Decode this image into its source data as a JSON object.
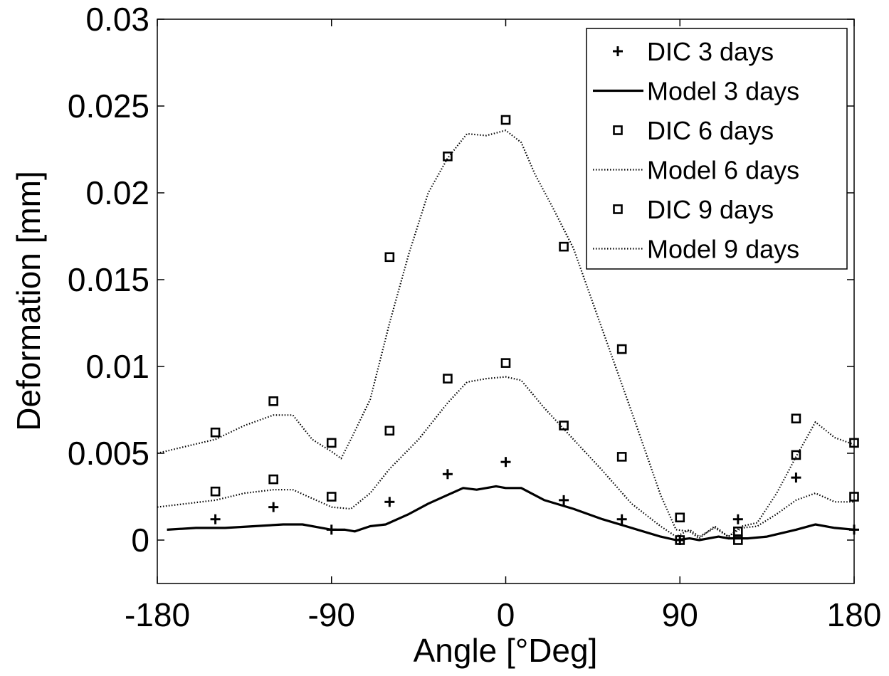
{
  "chart_data": {
    "type": "line",
    "title": "",
    "xlabel": "Angle [°Deg]",
    "ylabel": "Deformation [mm]",
    "xlim": [
      -180,
      180
    ],
    "ylim": [
      -0.0025,
      0.03
    ],
    "xticks": [
      -180,
      -90,
      0,
      90,
      180
    ],
    "xtick_labels": [
      "-180",
      "-90",
      "0",
      "90",
      "180"
    ],
    "yticks": [
      0,
      0.005,
      0.01,
      0.015,
      0.02,
      0.025,
      0.03
    ],
    "ytick_labels": [
      "0",
      "0.005",
      "0.01",
      "0.015",
      "0.02",
      "0.025",
      "0.03"
    ],
    "grid": false,
    "legend_position": "top-right",
    "series": [
      {
        "name": "DIC 3 days",
        "kind": "scatter",
        "marker": "plus",
        "x": [
          -150,
          -120,
          -90,
          -60,
          -30,
          0,
          30,
          60,
          90,
          120,
          150,
          180
        ],
        "y": [
          0.0012,
          0.0019,
          0.0006,
          0.0022,
          0.0038,
          0.0045,
          0.0023,
          0.0012,
          0.0,
          0.0012,
          0.0036,
          0.0006
        ]
      },
      {
        "name": "Model 3 days",
        "kind": "line",
        "style": "solid",
        "x": [
          -175,
          -160,
          -145,
          -130,
          -115,
          -105,
          -95,
          -90,
          -83,
          -78,
          -70,
          -62,
          -50,
          -40,
          -30,
          -22,
          -15,
          -5,
          0,
          8,
          20,
          35,
          50,
          65,
          80,
          88,
          95,
          100,
          110,
          115,
          125,
          135,
          150,
          160,
          170,
          180
        ],
        "y": [
          0.0006,
          0.0007,
          0.0007,
          0.0008,
          0.0009,
          0.0009,
          0.0007,
          0.0006,
          0.0006,
          0.0005,
          0.0008,
          0.0009,
          0.0015,
          0.0021,
          0.0026,
          0.003,
          0.0029,
          0.0031,
          0.003,
          0.003,
          0.0023,
          0.0018,
          0.0012,
          0.0007,
          0.0002,
          0.0,
          0.0001,
          0.0,
          0.0002,
          0.0001,
          0.0001,
          0.0002,
          0.0006,
          0.0009,
          0.0007,
          0.0006
        ]
      },
      {
        "name": "DIC 6 days",
        "kind": "scatter",
        "marker": "square",
        "x": [
          -150,
          -120,
          -90,
          -60,
          -30,
          0,
          30,
          60,
          90,
          120,
          150,
          180
        ],
        "y": [
          0.0028,
          0.0035,
          0.0025,
          0.0063,
          0.0093,
          0.0102,
          0.0066,
          0.0048,
          0.0013,
          0.0005,
          0.0049,
          0.0025
        ]
      },
      {
        "name": "Model 6 days",
        "kind": "line",
        "style": "dotted",
        "x": [
          -180,
          -165,
          -150,
          -135,
          -120,
          -110,
          -100,
          -90,
          -80,
          -70,
          -60,
          -45,
          -30,
          -20,
          -10,
          0,
          8,
          20,
          35,
          50,
          65,
          80,
          88,
          95,
          100,
          108,
          115,
          122,
          130,
          140,
          150,
          160,
          170,
          180
        ],
        "y": [
          0.0019,
          0.0021,
          0.0023,
          0.0027,
          0.0029,
          0.0029,
          0.0024,
          0.0019,
          0.0018,
          0.0027,
          0.0041,
          0.0058,
          0.0079,
          0.0091,
          0.0093,
          0.0094,
          0.0092,
          0.0076,
          0.0058,
          0.004,
          0.0021,
          0.0008,
          0.0002,
          0.0006,
          0.0002,
          0.0007,
          0.0002,
          0.0007,
          0.0008,
          0.0015,
          0.0023,
          0.0027,
          0.0022,
          0.0022
        ]
      },
      {
        "name": "DIC 9 days",
        "kind": "scatter",
        "marker": "square",
        "x": [
          -150,
          -120,
          -90,
          -60,
          -30,
          0,
          30,
          60,
          90,
          120,
          150,
          180
        ],
        "y": [
          0.0062,
          0.008,
          0.0056,
          0.0163,
          0.0221,
          0.0242,
          0.0169,
          0.011,
          0.0,
          0.0,
          0.007,
          0.0056
        ]
      },
      {
        "name": "Model 9 days",
        "kind": "line",
        "style": "dotted",
        "x": [
          -180,
          -165,
          -150,
          -135,
          -120,
          -110,
          -100,
          -90,
          -85,
          -80,
          -70,
          -60,
          -50,
          -40,
          -30,
          -20,
          -10,
          0,
          8,
          15,
          25,
          35,
          50,
          65,
          80,
          88,
          95,
          100,
          108,
          115,
          122,
          130,
          140,
          150,
          160,
          170,
          180
        ],
        "y": [
          0.005,
          0.0054,
          0.0058,
          0.0066,
          0.0072,
          0.0072,
          0.0058,
          0.0051,
          0.0047,
          0.0058,
          0.0081,
          0.0125,
          0.0165,
          0.02,
          0.022,
          0.0234,
          0.0233,
          0.0236,
          0.0229,
          0.0211,
          0.019,
          0.0168,
          0.0121,
          0.0074,
          0.0026,
          0.0006,
          0.0005,
          0.0001,
          0.0008,
          0.0002,
          0.0008,
          0.001,
          0.0027,
          0.0048,
          0.0068,
          0.0059,
          0.0055
        ]
      }
    ]
  }
}
